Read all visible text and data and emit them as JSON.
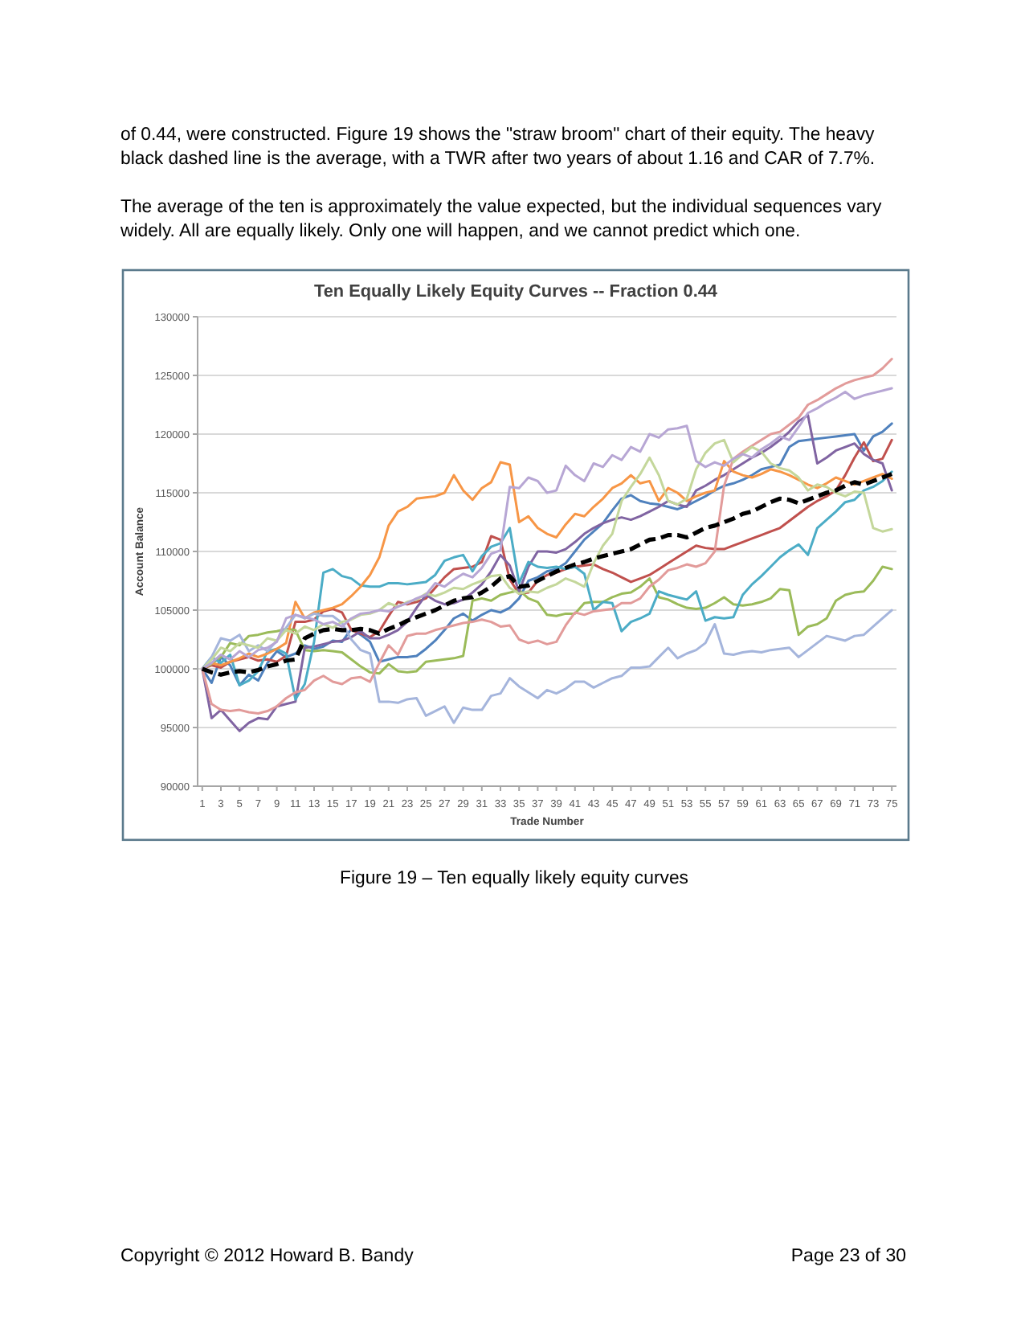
{
  "chart_data": {
    "type": "line",
    "title": "Ten Equally Likely Equity Curves -- Fraction 0.44",
    "xlabel": "Trade Number",
    "ylabel": "Account Balance",
    "annotations": [
      "of 0.44, were constructed. Figure 19 shows the \"straw broom\" chart of their equity. The heavy black dashed line is the average, with a TWR after two years of about 1.16 and CAR of 7.7%.",
      "The average of the ten is approximately the value expected, but the individual sequences vary widely. All are equally likely. Only one will happen, and we cannot predict which one.",
      "Figure 19 – Ten equally likely equity curves",
      "Copyright © 2012 Howard B. Bandy",
      "Page 23 of 30"
    ],
    "x": [
      1,
      2,
      3,
      4,
      5,
      6,
      7,
      8,
      9,
      10,
      11,
      12,
      13,
      14,
      15,
      16,
      17,
      18,
      19,
      20,
      21,
      22,
      23,
      24,
      25,
      26,
      27,
      28,
      29,
      30,
      31,
      32,
      33,
      34,
      35,
      36,
      37,
      38,
      39,
      40,
      41,
      42,
      43,
      44,
      45,
      46,
      47,
      48,
      49,
      50,
      51,
      52,
      53,
      54,
      55,
      56,
      57,
      58,
      59,
      60,
      61,
      62,
      63,
      64,
      65,
      66,
      67,
      68,
      69,
      70,
      71,
      72,
      73,
      74,
      75
    ],
    "xlim": [
      0.5,
      75.5
    ],
    "xticks": [
      1,
      3,
      5,
      7,
      9,
      11,
      13,
      15,
      17,
      19,
      21,
      23,
      25,
      27,
      29,
      31,
      33,
      35,
      37,
      39,
      41,
      43,
      45,
      47,
      49,
      51,
      53,
      55,
      57,
      59,
      61,
      63,
      65,
      67,
      69,
      71,
      73,
      75
    ],
    "ylim": [
      90000,
      130000
    ],
    "yticks": [
      90000,
      95000,
      100000,
      105000,
      110000,
      115000,
      120000,
      125000,
      130000
    ],
    "grid": "y",
    "series": [
      {
        "color": "#4f81bd",
        "values": [
          100000,
          98800,
          101000,
          100300,
          98600,
          99500,
          99000,
          100500,
          101500,
          101000,
          101300,
          102000,
          101700,
          101900,
          102400,
          102300,
          103400,
          102900,
          102300,
          100600,
          100800,
          101000,
          101000,
          101100,
          101700,
          102400,
          103300,
          104300,
          104700,
          104100,
          104600,
          105000,
          104800,
          105200,
          106000,
          107500,
          107800,
          108300,
          108500,
          109000,
          110000,
          111000,
          111700,
          112400,
          113500,
          114500,
          114800,
          114300,
          114100,
          114000,
          113800,
          113600,
          113900,
          114300,
          114700,
          115200,
          115600,
          115800,
          116100,
          116500,
          117000,
          117200,
          117400,
          118900,
          119400,
          119500,
          119600,
          119700,
          119800,
          119900,
          120000,
          118600,
          119800,
          120200,
          120900
        ]
      },
      {
        "color": "#c0504d",
        "values": [
          100000,
          100300,
          100100,
          100600,
          100800,
          101000,
          100700,
          100800,
          100600,
          101100,
          104000,
          104000,
          104200,
          104900,
          105100,
          104800,
          103300,
          103000,
          102700,
          103200,
          104500,
          105700,
          105500,
          105700,
          106000,
          106900,
          107800,
          108500,
          108600,
          108700,
          109100,
          111300,
          111000,
          107600,
          106400,
          106500,
          107500,
          108000,
          108200,
          108500,
          108700,
          108800,
          108900,
          108500,
          108200,
          107800,
          107400,
          107700,
          108000,
          108500,
          109000,
          109500,
          110000,
          110500,
          110300,
          110200,
          110200,
          110500,
          110800,
          111100,
          111400,
          111700,
          112000,
          112600,
          113200,
          113800,
          114300,
          114700,
          115200,
          116500,
          118000,
          119300,
          117700,
          117900,
          119500
        ]
      },
      {
        "color": "#9bbb59",
        "values": [
          100000,
          100400,
          101000,
          102200,
          102000,
          102800,
          102900,
          103100,
          103200,
          103400,
          103300,
          101600,
          101500,
          101600,
          101500,
          101400,
          100800,
          100200,
          99700,
          99600,
          100400,
          99800,
          99700,
          99800,
          100600,
          100700,
          100800,
          100900,
          101100,
          105800,
          106000,
          105800,
          106300,
          106500,
          106700,
          106000,
          105700,
          104600,
          104500,
          104700,
          104700,
          105600,
          105700,
          105700,
          106100,
          106400,
          106500,
          107000,
          107700,
          106100,
          105900,
          105500,
          105200,
          105100,
          105200,
          105600,
          106100,
          105500,
          105400,
          105500,
          105700,
          106000,
          106800,
          106700,
          102900,
          103600,
          103800,
          104300,
          105800,
          106300,
          106500,
          106600,
          107500,
          108700,
          108500
        ]
      },
      {
        "color": "#8064a2",
        "values": [
          100000,
          95800,
          96500,
          95600,
          94700,
          95400,
          95800,
          95700,
          96800,
          97000,
          97200,
          101800,
          101900,
          102100,
          102300,
          102400,
          102700,
          103200,
          102600,
          102600,
          102900,
          103300,
          104000,
          105200,
          106300,
          105800,
          105500,
          105600,
          105900,
          106500,
          107200,
          108300,
          109700,
          108800,
          106600,
          108700,
          110000,
          110000,
          109900,
          110200,
          110800,
          111500,
          112000,
          112400,
          112700,
          112900,
          112700,
          113000,
          113400,
          113800,
          114300,
          114000,
          113800,
          115200,
          115600,
          116100,
          116500,
          117000,
          117500,
          118000,
          118400,
          118900,
          119500,
          120200,
          121100,
          121600,
          117500,
          118000,
          118600,
          118900,
          119200,
          118300,
          117800,
          117500,
          115200
        ]
      },
      {
        "color": "#4bacc6",
        "values": [
          100000,
          101000,
          100500,
          101200,
          98600,
          99000,
          99800,
          101500,
          101700,
          101300,
          97400,
          98700,
          102300,
          108200,
          108500,
          107900,
          107700,
          107100,
          107000,
          107000,
          107300,
          107300,
          107200,
          107300,
          107400,
          108000,
          109200,
          109500,
          109700,
          108300,
          109600,
          110400,
          110700,
          112000,
          107300,
          109100,
          108700,
          108600,
          108700,
          108500,
          108700,
          108100,
          105000,
          105700,
          105600,
          103200,
          104000,
          104300,
          104700,
          106600,
          106300,
          106100,
          105900,
          106600,
          104100,
          104400,
          104300,
          104400,
          106300,
          107200,
          107900,
          108700,
          109500,
          110100,
          110600,
          109700,
          112000,
          112700,
          113400,
          114200,
          114400,
          115200,
          115500,
          116000,
          116800
        ]
      },
      {
        "color": "#f79646",
        "values": [
          100000,
          100500,
          100300,
          100600,
          100900,
          101300,
          101000,
          101300,
          101700,
          102200,
          105700,
          104300,
          104800,
          105000,
          105200,
          105500,
          106200,
          107000,
          108000,
          109500,
          112200,
          113400,
          113800,
          114500,
          114600,
          114700,
          115000,
          116500,
          115200,
          114400,
          115400,
          115900,
          117600,
          117400,
          112500,
          113000,
          112000,
          111500,
          111200,
          112300,
          113200,
          113000,
          113800,
          114500,
          115400,
          115800,
          116500,
          115800,
          116000,
          114300,
          115400,
          115000,
          114300,
          114700,
          115000,
          115200,
          117700,
          116800,
          116500,
          116300,
          116600,
          117000,
          116800,
          116500,
          116100,
          115700,
          115400,
          115800,
          116300,
          116000,
          115700,
          116000,
          116300,
          116600,
          116200
        ]
      },
      {
        "color": "#a5b5dc",
        "values": [
          100000,
          101000,
          102600,
          102400,
          102900,
          101500,
          102000,
          101500,
          102400,
          103500,
          104600,
          104300,
          104700,
          104500,
          104500,
          103900,
          102500,
          101600,
          101300,
          97200,
          97200,
          97100,
          97400,
          97500,
          96000,
          96400,
          96800,
          95400,
          96700,
          96500,
          96500,
          97700,
          97900,
          99200,
          98500,
          98000,
          97500,
          98200,
          97900,
          98300,
          98900,
          98900,
          98400,
          98800,
          99200,
          99400,
          100100,
          100100,
          100200,
          101000,
          101800,
          100900,
          101300,
          101600,
          102200,
          103800,
          101300,
          101200,
          101400,
          101500,
          101400,
          101600,
          101700,
          101800,
          101000,
          101600,
          102200,
          102800,
          102600,
          102400,
          102800,
          102900,
          103600,
          104300,
          105000
        ]
      },
      {
        "color": "#e29b9a",
        "values": [
          100000,
          97000,
          96500,
          96400,
          96500,
          96300,
          96200,
          96400,
          96800,
          97500,
          98000,
          98200,
          99000,
          99400,
          98900,
          98700,
          99200,
          99300,
          98900,
          100500,
          102000,
          101200,
          102800,
          103000,
          103000,
          103300,
          103500,
          103700,
          103900,
          104000,
          104200,
          104000,
          103600,
          103700,
          102500,
          102200,
          102400,
          102100,
          102300,
          103700,
          104800,
          104600,
          104900,
          105000,
          105100,
          105600,
          105600,
          106000,
          107000,
          107600,
          108400,
          108600,
          108900,
          108700,
          109000,
          110000,
          115600,
          117900,
          118500,
          119000,
          119500,
          120000,
          120200,
          120800,
          121400,
          122500,
          122900,
          123400,
          123900,
          124300,
          124600,
          124800,
          125000,
          125600,
          126400
        ]
      },
      {
        "color": "#c4d79b",
        "values": [
          100000,
          100800,
          101800,
          101500,
          102200,
          102000,
          101800,
          102600,
          102400,
          103300,
          103000,
          103600,
          103300,
          103800,
          103500,
          104000,
          104200,
          104600,
          104700,
          105000,
          105600,
          105300,
          105700,
          105900,
          106400,
          106200,
          106500,
          106900,
          106800,
          107200,
          107500,
          107900,
          108000,
          106900,
          106400,
          106600,
          106500,
          106900,
          107200,
          107700,
          107400,
          107000,
          109000,
          110500,
          111500,
          114300,
          115500,
          116600,
          118000,
          116500,
          114300,
          114000,
          114500,
          117000,
          118400,
          119200,
          119500,
          117600,
          118300,
          118900,
          118500,
          117500,
          117100,
          116900,
          116300,
          115200,
          115700,
          115500,
          115000,
          114700,
          115100,
          115000,
          112000,
          111700,
          111900
        ]
      },
      {
        "color": "#b7a6d4",
        "values": [
          100000,
          100500,
          101200,
          100800,
          101500,
          101000,
          101600,
          101800,
          102300,
          104300,
          104600,
          104400,
          104200,
          103800,
          104000,
          103600,
          104300,
          104700,
          104800,
          105000,
          104900,
          105300,
          105600,
          106000,
          106300,
          107300,
          107000,
          107600,
          108100,
          107800,
          108600,
          109800,
          110100,
          115500,
          115400,
          116300,
          116000,
          115000,
          115200,
          117300,
          116500,
          116000,
          117500,
          117200,
          118200,
          117800,
          118900,
          118500,
          120000,
          119700,
          120400,
          120500,
          120700,
          117700,
          117200,
          117600,
          117300,
          117900,
          118300,
          118000,
          118700,
          119200,
          119800,
          119500,
          120600,
          121800,
          122200,
          122700,
          123100,
          123600,
          123000,
          123300,
          123500,
          123700,
          123900
        ]
      },
      {
        "color": "#000000",
        "line_style": "dashed",
        "values": [
          100000,
          99700,
          99500,
          99700,
          99800,
          99700,
          99900,
          100200,
          100400,
          100700,
          100800,
          102600,
          103000,
          103300,
          103400,
          103300,
          103300,
          103400,
          103300,
          103000,
          103400,
          103700,
          104100,
          104400,
          104700,
          105000,
          105400,
          105800,
          106000,
          106100,
          106500,
          107000,
          107700,
          107900,
          107000,
          107100,
          107500,
          107900,
          108300,
          108600,
          108900,
          109100,
          109400,
          109600,
          109800,
          110000,
          110200,
          110600,
          111000,
          111100,
          111400,
          111400,
          111200,
          111600,
          112000,
          112200,
          112500,
          112800,
          113200,
          113400,
          113800,
          114200,
          114500,
          114400,
          114100,
          114400,
          114700,
          115000,
          115200,
          115600,
          115900,
          115700,
          116000,
          116300,
          116600
        ]
      }
    ]
  }
}
